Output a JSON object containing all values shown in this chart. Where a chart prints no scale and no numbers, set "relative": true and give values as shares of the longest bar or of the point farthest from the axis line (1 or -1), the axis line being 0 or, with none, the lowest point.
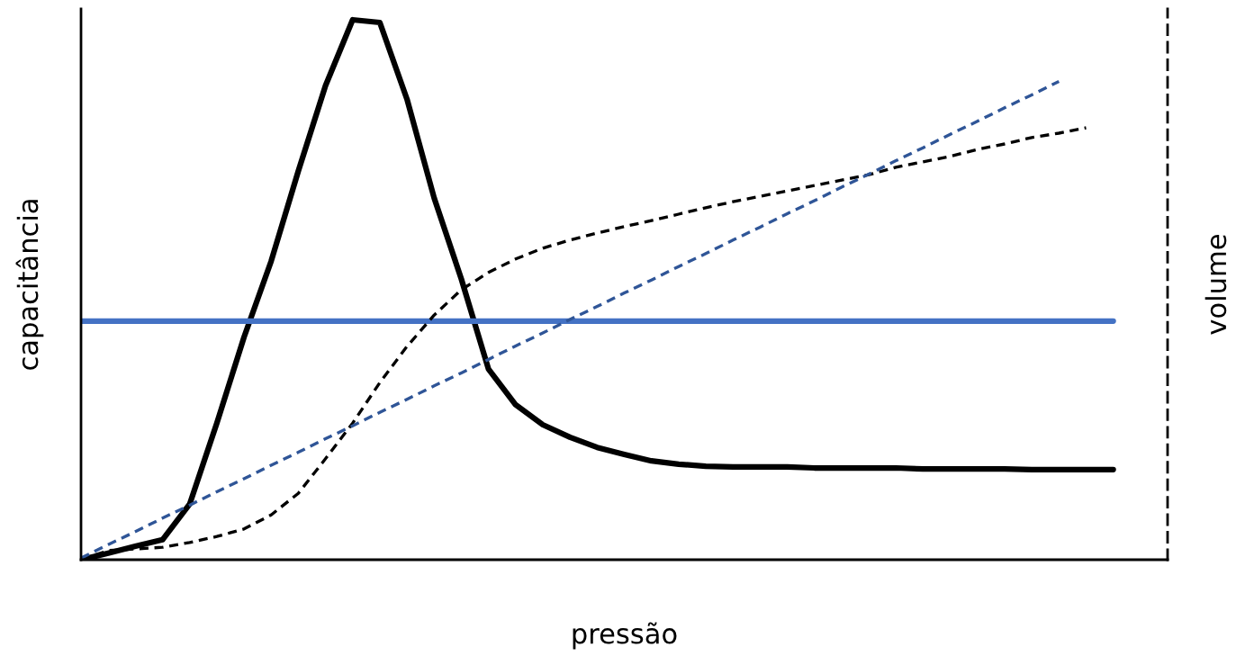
{
  "chart_data": {
    "type": "line",
    "relative": true,
    "xlabel": "pressão",
    "ylabel": "capacitância",
    "y2label": "volume",
    "legend": false,
    "categories": [
      null,
      null,
      null,
      null,
      null,
      null,
      null,
      null,
      null,
      null,
      null,
      null,
      null,
      null,
      null,
      null,
      null,
      null,
      null,
      null,
      null,
      null,
      null,
      null,
      null,
      null,
      null,
      null,
      null,
      null,
      null,
      null,
      null,
      null,
      null,
      null,
      null,
      null,
      null,
      null,
      null
    ],
    "series": [
      {
        "color": "#000000",
        "line_style": "solid",
        "values": [
          0,
          0.012,
          0.025,
          0.037,
          0.103,
          0.253,
          0.412,
          0.553,
          0.72,
          0.878,
          1,
          0.995,
          0.853,
          0.67,
          0.52,
          0.353,
          0.287,
          0.25,
          0.227,
          0.208,
          0.195,
          0.183,
          0.177,
          0.173,
          0.172,
          0.172,
          0.172,
          0.17,
          0.17,
          0.17,
          0.17,
          0.168,
          0.168,
          0.168,
          0.168,
          0.167,
          0.167,
          0.167,
          0.167,
          null,
          null
        ]
      },
      {
        "color": "#4472c4",
        "line_style": "solid",
        "values": [
          0.442,
          0.442,
          0.442,
          0.442,
          0.442,
          0.442,
          0.442,
          0.442,
          0.442,
          0.442,
          0.442,
          0.442,
          0.442,
          0.442,
          0.442,
          0.442,
          0.442,
          0.442,
          0.442,
          0.442,
          0.442,
          0.442,
          0.442,
          0.442,
          0.442,
          0.442,
          0.442,
          0.442,
          0.442,
          0.442,
          0.442,
          0.442,
          0.442,
          0.442,
          0.442,
          0.442,
          0.442,
          0.442,
          0.442,
          null,
          null
        ]
      },
      {
        "color": "#000000",
        "line_style": "dashed",
        "values": [
          0,
          0.017,
          0.02,
          0.023,
          0.032,
          0.043,
          0.057,
          0.083,
          0.123,
          0.187,
          0.253,
          0.328,
          0.395,
          0.453,
          0.5,
          0.532,
          0.557,
          0.577,
          0.592,
          0.605,
          0.617,
          0.628,
          0.64,
          0.652,
          0.663,
          0.673,
          0.683,
          0.693,
          0.703,
          0.713,
          0.727,
          0.737,
          0.747,
          0.76,
          0.77,
          0.782,
          0.79,
          0.8,
          null,
          null,
          null
        ]
      },
      {
        "color": "#2f5597",
        "line_style": "dashed",
        "values": [
          0.003,
          0.028,
          0.052,
          0.077,
          0.101,
          0.126,
          0.15,
          0.175,
          0.199,
          0.224,
          0.248,
          0.273,
          0.297,
          0.322,
          0.346,
          0.371,
          0.396,
          0.42,
          0.445,
          0.469,
          0.494,
          0.518,
          0.543,
          0.567,
          0.592,
          0.616,
          0.641,
          0.665,
          0.69,
          0.714,
          0.739,
          0.763,
          0.788,
          0.812,
          0.837,
          0.861,
          0.886,
          null,
          null,
          null,
          null
        ]
      }
    ]
  }
}
